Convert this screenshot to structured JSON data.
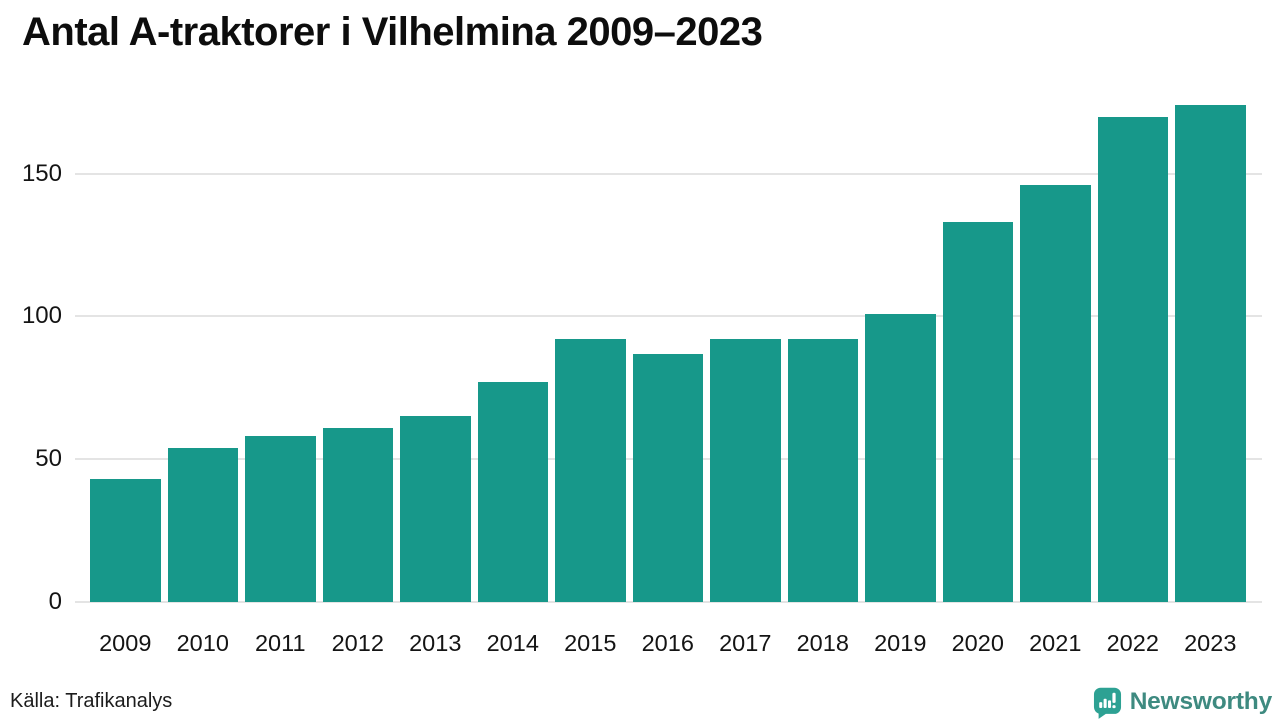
{
  "title": "Antal A-traktorer i Vilhelmina 2009–2023",
  "footer": {
    "source": "Källa: Trafikanalys",
    "brand": "Newsworthy",
    "brand_icon": "newsworthy-speech-bubble-bar-chart-icon"
  },
  "colors": {
    "bar": "#17988a",
    "grid": "#e4e4e4",
    "tick_text": "#141414",
    "title_text": "#0d0d0d",
    "brand_text": "#3e8a80",
    "brand_icon_bg": "#2da193",
    "brand_icon_glyph": "#ffffff"
  },
  "chart_data": {
    "type": "bar",
    "title": "Antal A-traktorer i Vilhelmina 2009–2023",
    "categories": [
      "2009",
      "2010",
      "2011",
      "2012",
      "2013",
      "2014",
      "2015",
      "2016",
      "2017",
      "2018",
      "2019",
      "2020",
      "2021",
      "2022",
      "2023"
    ],
    "values": [
      43,
      54,
      58,
      61,
      65,
      77,
      92,
      87,
      92,
      92,
      101,
      133,
      146,
      170,
      174
    ],
    "xlabel": "",
    "ylabel": "",
    "yticks": [
      0,
      50,
      100,
      150
    ],
    "ylim": [
      0,
      180
    ],
    "grid": true,
    "legend": false,
    "source": "Trafikanalys"
  }
}
